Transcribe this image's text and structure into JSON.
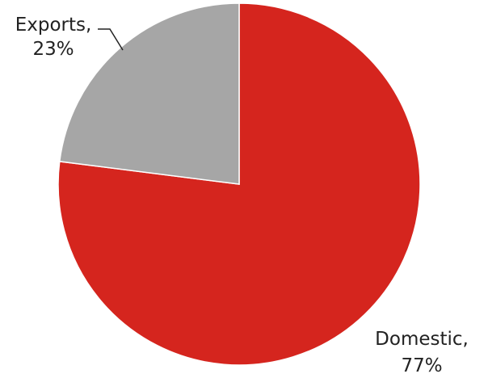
{
  "chart_data": {
    "type": "pie",
    "title": "",
    "start_angle_deg": 0,
    "direction": "clockwise",
    "slices": [
      {
        "name": "Domestic",
        "value": 77,
        "label_name": "Domestic,",
        "label_pct": "77%",
        "color": "#d5251e"
      },
      {
        "name": "Exports",
        "value": 23,
        "label_name": "Exports,",
        "label_pct": "23%",
        "color": "#a6a6a6"
      }
    ],
    "label_line_color": "#222222",
    "slice_border_color": "#ffffff"
  }
}
